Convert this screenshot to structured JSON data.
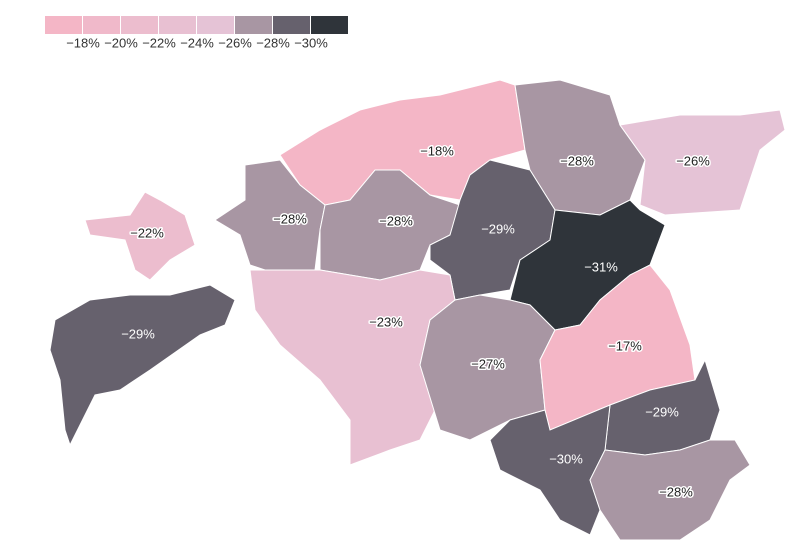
{
  "chart_data": {
    "type": "choropleth",
    "legend": {
      "colors": [
        "#f4b6c6",
        "#f0b9ca",
        "#ecbdce",
        "#e8c0d2",
        "#e5c3d6",
        "#a896a3",
        "#66616d",
        "#2f343a"
      ],
      "ticks": [
        {
          "value": -18,
          "label": "−18%"
        },
        {
          "value": -20,
          "label": "−20%"
        },
        {
          "value": -22,
          "label": "−22%"
        },
        {
          "value": -24,
          "label": "−24%"
        },
        {
          "value": -26,
          "label": "−26%"
        },
        {
          "value": -28,
          "label": "−28%"
        },
        {
          "value": -30,
          "label": "−30%"
        }
      ]
    },
    "values": [
      -18,
      -28,
      -26,
      -22,
      -28,
      -28,
      -29,
      -31,
      -29,
      -23,
      -27,
      -17,
      -29,
      -30,
      -28
    ],
    "value_labels": [
      "−18%",
      "−28%",
      "−26%",
      "−22%",
      "−28%",
      "−28%",
      "−29%",
      "−31%",
      "−29%",
      "−23%",
      "−27%",
      "−17%",
      "−29%",
      "−30%",
      "−28%"
    ]
  }
}
